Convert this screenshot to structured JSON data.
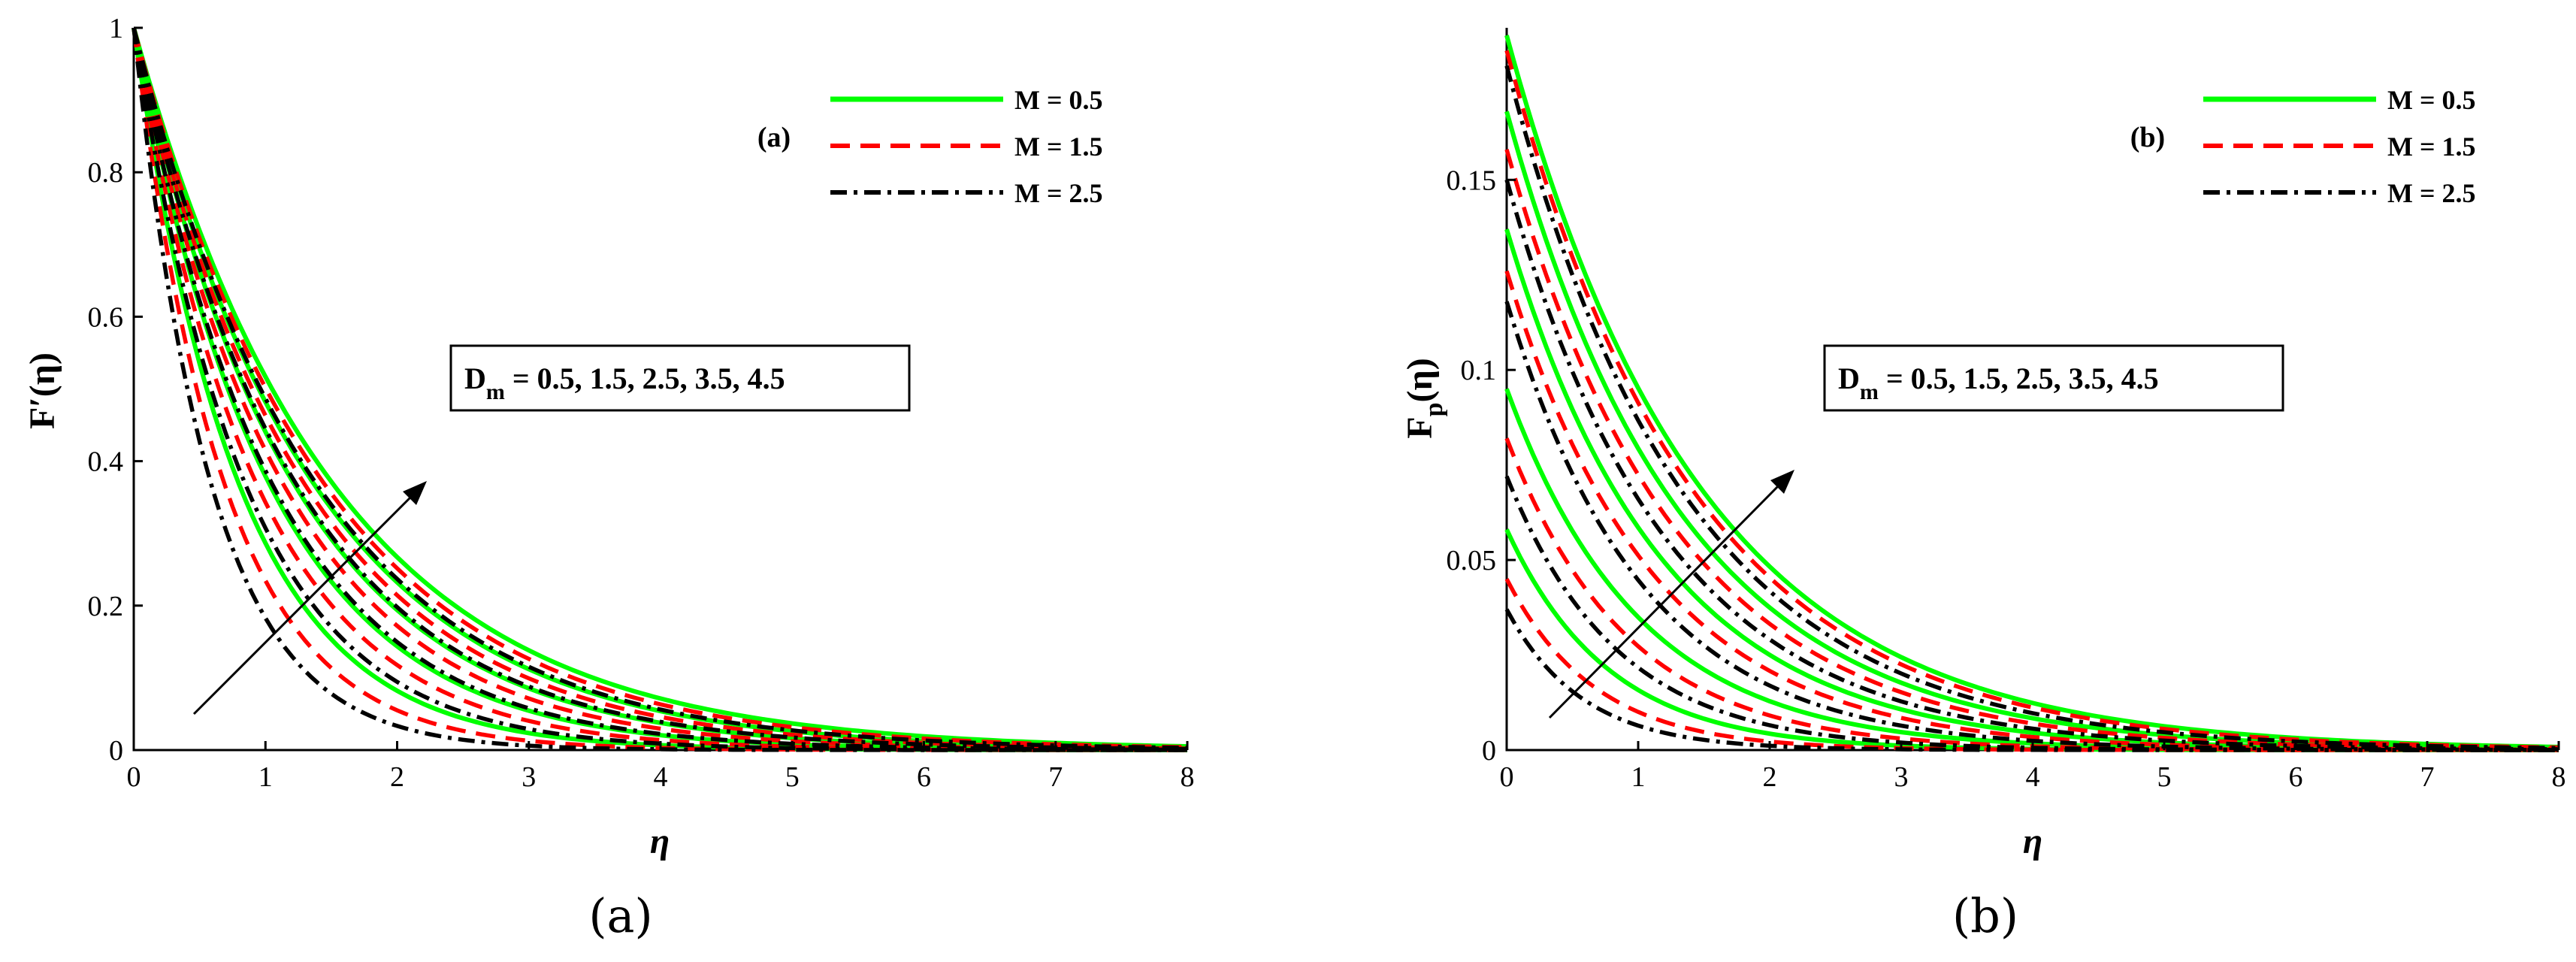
{
  "chart_data": [
    {
      "type": "line",
      "panel_label": "(a)",
      "caption": "(a)",
      "xlabel": "η",
      "ylabel": "F′(η)",
      "xlim": [
        0,
        8
      ],
      "ylim": [
        0,
        1
      ],
      "xticks": [
        "0",
        "1",
        "2",
        "3",
        "4",
        "5",
        "6",
        "7",
        "8"
      ],
      "yticks": [
        "0",
        "0.2",
        "0.4",
        "0.6",
        "0.8",
        "1"
      ],
      "legend": [
        "M = 0.5",
        "M = 1.5",
        "M = 2.5"
      ],
      "legend_position": "top-right",
      "annotation": "D",
      "annotation_sub": "m",
      "annotation_values": " = 0.5, 1.5, 2.5, 3.5, 4.5",
      "Dm": [
        0.5,
        1.5,
        2.5,
        3.5,
        4.5
      ],
      "series": [
        {
          "name": "M = 0.5",
          "color": "#00ff00",
          "style": "solid",
          "initial": [
            1,
            1,
            1,
            1,
            1
          ],
          "decay_rate": [
            1.25,
            0.97,
            0.82,
            0.73,
            0.66
          ]
        },
        {
          "name": "M = 1.5",
          "color": "#ff0000",
          "style": "dashed",
          "initial": [
            1,
            1,
            1,
            1,
            1
          ],
          "decay_rate": [
            1.45,
            1.07,
            0.88,
            0.77,
            0.69
          ]
        },
        {
          "name": "M = 2.5",
          "color": "#000000",
          "style": "dashdot",
          "initial": [
            1,
            1,
            1,
            1,
            1
          ],
          "decay_rate": [
            1.7,
            1.18,
            0.95,
            0.81,
            0.72
          ]
        }
      ]
    },
    {
      "type": "line",
      "panel_label": "(b)",
      "caption": "(b)",
      "xlabel": "η",
      "ylabel": "F",
      "ylabel_sub": "p",
      "ylabel_suffix": "(η)",
      "xlim": [
        0,
        8
      ],
      "ylim": [
        0,
        0.19
      ],
      "xticks": [
        "0",
        "1",
        "2",
        "3",
        "4",
        "5",
        "6",
        "7",
        "8"
      ],
      "yticks": [
        "0",
        "0.05",
        "0.1",
        "0.15"
      ],
      "ytick_values": [
        0,
        0.05,
        0.1,
        0.15
      ],
      "legend": [
        "M = 0.5",
        "M = 1.5",
        "M = 2.5"
      ],
      "legend_position": "top-right",
      "annotation": "D",
      "annotation_sub": "m",
      "annotation_values": " = 0.5, 1.5, 2.5, 3.5, 4.5",
      "Dm": [
        0.5,
        1.5,
        2.5,
        3.5,
        4.5
      ],
      "series": [
        {
          "name": "M = 0.5",
          "color": "#00ff00",
          "style": "solid",
          "initial": [
            0.058,
            0.095,
            0.137,
            0.168,
            0.188
          ],
          "decay_rate": [
            1.3,
            1.0,
            0.85,
            0.75,
            0.68
          ]
        },
        {
          "name": "M = 1.5",
          "color": "#ff0000",
          "style": "dashed",
          "initial": [
            0.045,
            0.082,
            0.126,
            0.158,
            0.184
          ],
          "decay_rate": [
            1.5,
            1.1,
            0.9,
            0.78,
            0.7
          ]
        },
        {
          "name": "M = 2.5",
          "color": "#000000",
          "style": "dashdot",
          "initial": [
            0.037,
            0.072,
            0.118,
            0.15,
            0.18
          ],
          "decay_rate": [
            1.75,
            1.2,
            0.97,
            0.82,
            0.73
          ]
        }
      ]
    }
  ]
}
